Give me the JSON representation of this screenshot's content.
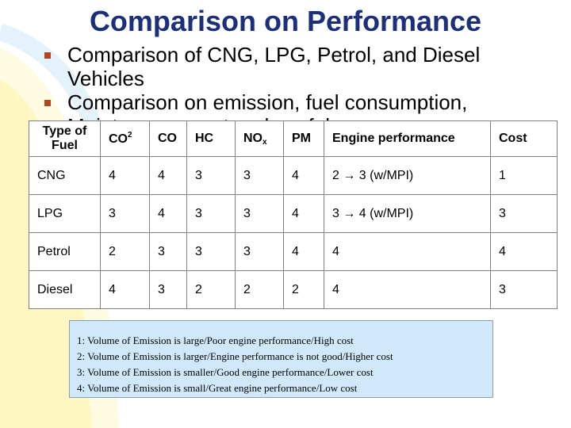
{
  "title": "Comparison on Performance",
  "bullets": [
    "Comparison of CNG, LPG, Petrol, and Diesel Vehicles",
    "Comparison on emission, fuel consumption, Maintenance cost and usefulness"
  ],
  "table": {
    "headers": {
      "type_line1": "Type of",
      "type_line2": "Fuel",
      "co2": "CO",
      "co2_sup": "2",
      "co": "CO",
      "hc": "HC",
      "nox": "NO",
      "nox_sub": "x",
      "pm": "PM",
      "engine": "Engine performance",
      "cost": "Cost"
    },
    "rows": [
      {
        "fuel": "CNG",
        "co2": "4",
        "co": "4",
        "hc": "3",
        "nox": "3",
        "pm": "4",
        "engine": "2 → 3 (w/MPI)",
        "cost": "1"
      },
      {
        "fuel": "LPG",
        "co2": "3",
        "co": "4",
        "hc": "3",
        "nox": "3",
        "pm": "4",
        "engine": "3 → 4 (w/MPI)",
        "cost": "3"
      },
      {
        "fuel": "Petrol",
        "co2": "2",
        "co": "3",
        "hc": "3",
        "nox": "3",
        "pm": "4",
        "engine": "4",
        "cost": "4"
      },
      {
        "fuel": "Diesel",
        "co2": "4",
        "co": "3",
        "hc": "2",
        "nox": "2",
        "pm": "2",
        "engine": "4",
        "cost": "3"
      }
    ]
  },
  "legend": [
    "1: Volume of Emission is large/Poor engine performance/High cost",
    "2: Volume of Emission is larger/Engine performance is not good/Higher cost",
    "3: Volume of Emission is smaller/Good engine performance/Lower cost",
    "4: Volume of Emission is small/Great engine performance/Low cost"
  ],
  "colors": {
    "title": "#1c2f7a",
    "bullet": "#b24522",
    "legend_bg": "#cfe9fb",
    "swoosh": "#fff8cc"
  }
}
